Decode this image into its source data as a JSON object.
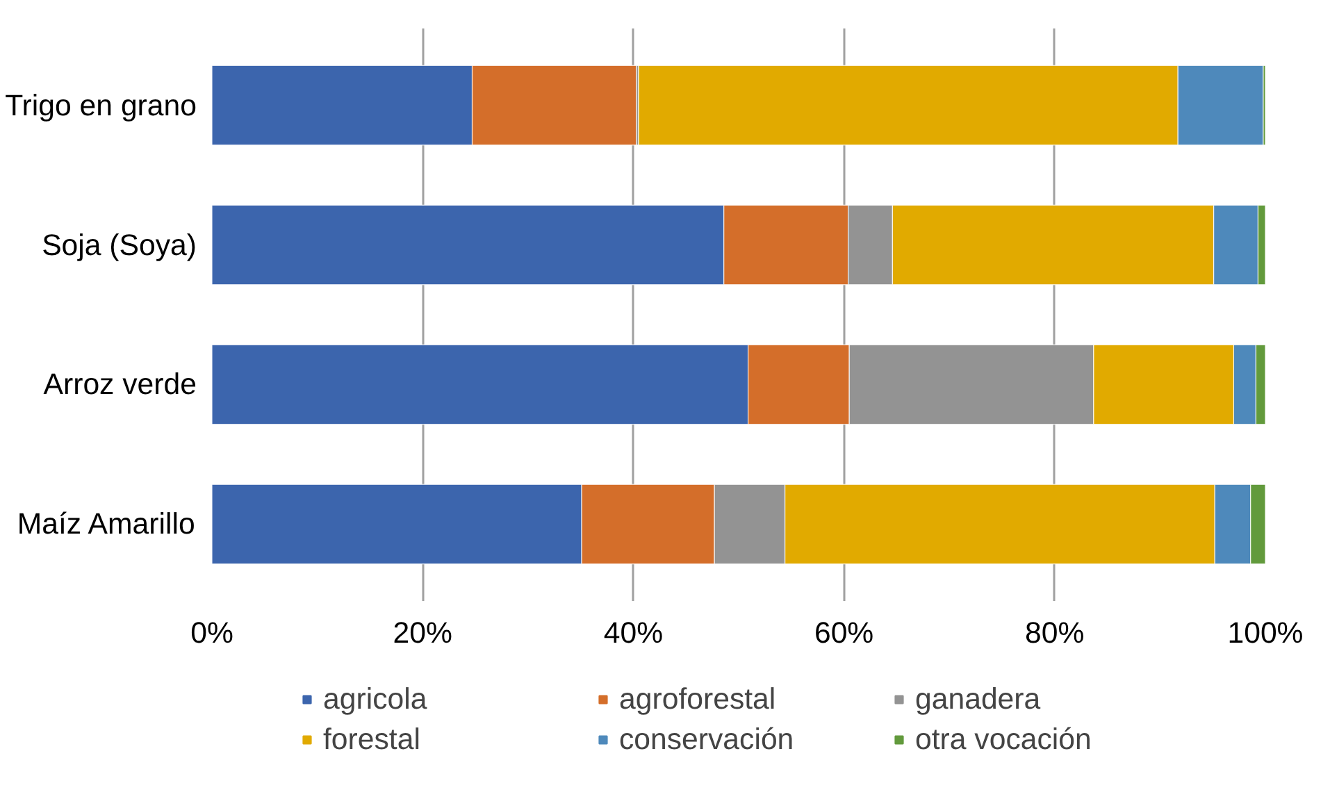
{
  "chart_data": {
    "type": "bar",
    "orientation": "horizontal",
    "stacked": true,
    "categories": [
      "Trigo en grano",
      "Soja (Soya)",
      "Arroz verde",
      "Maíz Amarillo"
    ],
    "series": [
      {
        "name": "agricola",
        "color": "#3c65ad",
        "values": [
          24.7,
          48.6,
          50.9,
          35.1
        ]
      },
      {
        "name": "agroforestal",
        "color": "#d46e2a",
        "values": [
          15.6,
          11.8,
          9.6,
          12.6
        ]
      },
      {
        "name": "ganadera",
        "color": "#939393",
        "values": [
          0.2,
          4.2,
          23.2,
          6.7
        ]
      },
      {
        "name": "forestal",
        "color": "#e1aa00",
        "values": [
          51.2,
          30.5,
          13.3,
          40.8
        ]
      },
      {
        "name": "conservación",
        "color": "#4e89bb",
        "values": [
          8.1,
          4.2,
          2.1,
          3.4
        ]
      },
      {
        "name": "otra vocación",
        "color": "#629a3c",
        "values": [
          0.2,
          0.7,
          0.9,
          1.4
        ]
      }
    ],
    "xlim": [
      0,
      100
    ],
    "xticks": [
      {
        "value": 0,
        "label": "0%"
      },
      {
        "value": 20,
        "label": "20%"
      },
      {
        "value": 40,
        "label": "40%"
      },
      {
        "value": 60,
        "label": "60%"
      },
      {
        "value": 80,
        "label": "80%"
      },
      {
        "value": 100,
        "label": "100%"
      }
    ],
    "grid": "x",
    "legend": "bottom"
  }
}
